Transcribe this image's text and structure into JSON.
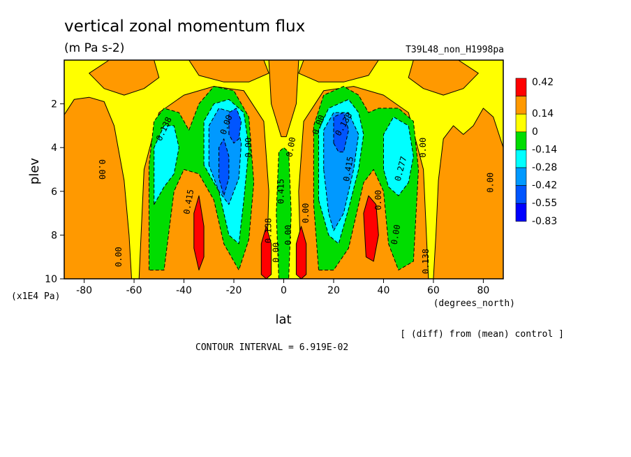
{
  "chart_data": {
    "type": "heatmap",
    "title": "vertical zonal momentum flux",
    "units": "(m Pa s-2)",
    "run_label": "T39L48_non_H1998pa",
    "xlabel": "lat",
    "x_units": "(degrees_north)",
    "ylabel": "plev",
    "y_units": "(x1E4 Pa)",
    "xlim": [
      -88,
      88
    ],
    "ylim": [
      10,
      0
    ],
    "x_ticks": [
      "-80",
      "-60",
      "-40",
      "-20",
      "0",
      "20",
      "40",
      "60",
      "80"
    ],
    "y_ticks": [
      "2",
      "4",
      "6",
      "8",
      "10"
    ],
    "contour_interval_label": "CONTOUR INTERVAL = 6.919E-02",
    "diff_note": "[ (diff) from (mean) control ]",
    "legend": [
      {
        "label": "0.42",
        "color": "#ff0000"
      },
      {
        "label": "0.14",
        "color": "#ff9900"
      },
      {
        "label": "0",
        "color": "#ffff00"
      },
      {
        "label": "-0.14",
        "color": "#00dd00"
      },
      {
        "label": "-0.28",
        "color": "#00ffff"
      },
      {
        "label": "-0.42",
        "color": "#0099ff"
      },
      {
        "label": "-0.55",
        "color": "#0055ff"
      },
      {
        "label": "-0.83",
        "color": "#0000ff"
      }
    ],
    "contour_labels": [
      "0.138",
      "0.00",
      "0.00",
      "0.415",
      "0.00",
      "0.00",
      "0.138",
      "0.00",
      "0.415",
      "0.00",
      "0.00",
      "0.138",
      "0.415",
      "0.00",
      "0.00",
      "0.277",
      "0.00",
      "0.00",
      "0.138",
      "0.00",
      "0.00"
    ],
    "regions": [
      {
        "kind": "orange",
        "path": [
          [
            -88,
            10
          ],
          [
            -88,
            2.5
          ],
          [
            -84,
            1.8
          ],
          [
            -78,
            1.7
          ],
          [
            -72,
            1.9
          ],
          [
            -68,
            3.0
          ],
          [
            -64,
            5.5
          ],
          [
            -62,
            8.0
          ],
          [
            -61,
            10
          ]
        ]
      },
      {
        "kind": "orange",
        "path": [
          [
            -70,
            0
          ],
          [
            -52,
            0
          ],
          [
            -50,
            0.8
          ],
          [
            -56,
            1.3
          ],
          [
            -64,
            1.6
          ],
          [
            -72,
            1.3
          ],
          [
            -78,
            0.6
          ]
        ]
      },
      {
        "kind": "orange",
        "path": [
          [
            -38,
            0
          ],
          [
            -8,
            0
          ],
          [
            -6,
            0.6
          ],
          [
            -14,
            1.0
          ],
          [
            -24,
            1.0
          ],
          [
            -34,
            0.7
          ]
        ]
      },
      {
        "kind": "orange",
        "path": [
          [
            -6,
            0
          ],
          [
            6,
            0
          ],
          [
            5,
            2.0
          ],
          [
            1,
            3.5
          ],
          [
            -1,
            3.5
          ],
          [
            -5,
            2.0
          ]
        ]
      },
      {
        "kind": "orange",
        "path": [
          [
            8,
            0
          ],
          [
            38,
            0
          ],
          [
            34,
            0.7
          ],
          [
            24,
            1.0
          ],
          [
            14,
            1.0
          ],
          [
            6,
            0.6
          ]
        ]
      },
      {
        "kind": "orange",
        "path": [
          [
            52,
            0
          ],
          [
            70,
            0
          ],
          [
            78,
            0.6
          ],
          [
            72,
            1.3
          ],
          [
            64,
            1.6
          ],
          [
            56,
            1.3
          ],
          [
            50,
            0.8
          ]
        ]
      },
      {
        "kind": "orange",
        "path": [
          [
            88,
            4.0
          ],
          [
            88,
            10
          ],
          [
            60,
            10
          ],
          [
            61,
            8.0
          ],
          [
            62,
            5.5
          ],
          [
            64,
            3.6
          ],
          [
            68,
            3.0
          ],
          [
            72,
            3.4
          ],
          [
            76,
            3.0
          ],
          [
            80,
            2.2
          ],
          [
            84,
            2.6
          ]
        ]
      },
      {
        "kind": "orange",
        "path": [
          [
            -58,
            10
          ],
          [
            -56,
            5.0
          ],
          [
            -50,
            2.4
          ],
          [
            -40,
            1.6
          ],
          [
            -28,
            1.2
          ],
          [
            -16,
            1.4
          ],
          [
            -8,
            2.8
          ],
          [
            -6,
            6.0
          ],
          [
            -7,
            10
          ]
        ]
      },
      {
        "kind": "orange",
        "path": [
          [
            7,
            10
          ],
          [
            6,
            6.0
          ],
          [
            8,
            2.8
          ],
          [
            16,
            1.4
          ],
          [
            28,
            1.2
          ],
          [
            40,
            1.6
          ],
          [
            50,
            2.4
          ],
          [
            56,
            5.0
          ],
          [
            58,
            10
          ]
        ]
      },
      {
        "kind": "green",
        "path": [
          [
            -54,
            9.6
          ],
          [
            -54,
            4.8
          ],
          [
            -52,
            2.8
          ],
          [
            -48,
            2.2
          ],
          [
            -42,
            2.4
          ],
          [
            -38,
            3.2
          ],
          [
            -34,
            2.0
          ],
          [
            -28,
            1.2
          ],
          [
            -20,
            1.4
          ],
          [
            -14,
            2.6
          ],
          [
            -12,
            5.6
          ],
          [
            -14,
            8.2
          ],
          [
            -18,
            9.6
          ],
          [
            -24,
            8.4
          ],
          [
            -28,
            6.4
          ],
          [
            -34,
            5.2
          ],
          [
            -40,
            5.0
          ],
          [
            -44,
            6.0
          ],
          [
            -48,
            9.6
          ]
        ]
      },
      {
        "kind": "green",
        "path": [
          [
            14,
            9.6
          ],
          [
            12,
            6.6
          ],
          [
            12,
            3.0
          ],
          [
            16,
            1.6
          ],
          [
            24,
            1.2
          ],
          [
            30,
            1.6
          ],
          [
            34,
            2.4
          ],
          [
            38,
            2.2
          ],
          [
            46,
            2.2
          ],
          [
            52,
            2.8
          ],
          [
            54,
            5.0
          ],
          [
            52,
            9.2
          ],
          [
            46,
            9.6
          ],
          [
            42,
            8.4
          ],
          [
            40,
            6.0
          ],
          [
            36,
            5.0
          ],
          [
            32,
            5.6
          ],
          [
            26,
            8.6
          ],
          [
            20,
            9.6
          ]
        ]
      },
      {
        "kind": "green",
        "path": [
          [
            -2,
            10
          ],
          [
            -3,
            7.0
          ],
          [
            -2,
            4.2
          ],
          [
            0,
            4.0
          ],
          [
            2,
            4.2
          ],
          [
            3,
            7.0
          ],
          [
            2,
            10
          ]
        ]
      },
      {
        "kind": "cyan",
        "path": [
          [
            -52,
            6.6
          ],
          [
            -52,
            4.0
          ],
          [
            -48,
            3.0
          ],
          [
            -44,
            3.0
          ],
          [
            -42,
            4.0
          ],
          [
            -44,
            5.2
          ],
          [
            -48,
            5.8
          ]
        ]
      },
      {
        "kind": "cyan",
        "path": [
          [
            40,
            5.0
          ],
          [
            40,
            3.4
          ],
          [
            44,
            2.6
          ],
          [
            50,
            3.0
          ],
          [
            52,
            4.4
          ],
          [
            50,
            5.6
          ],
          [
            46,
            6.2
          ],
          [
            42,
            5.8
          ]
        ]
      },
      {
        "kind": "cyan",
        "path": [
          [
            -32,
            4.8
          ],
          [
            -32,
            2.8
          ],
          [
            -28,
            2.0
          ],
          [
            -22,
            1.8
          ],
          [
            -16,
            2.4
          ],
          [
            -14,
            4.0
          ],
          [
            -16,
            6.4
          ],
          [
            -18,
            8.4
          ],
          [
            -22,
            8.0
          ],
          [
            -26,
            6.0
          ]
        ]
      },
      {
        "kind": "cyan",
        "path": [
          [
            14,
            6.4
          ],
          [
            14,
            3.2
          ],
          [
            18,
            2.2
          ],
          [
            26,
            1.8
          ],
          [
            30,
            2.4
          ],
          [
            32,
            3.4
          ],
          [
            30,
            5.0
          ],
          [
            26,
            6.8
          ],
          [
            22,
            8.4
          ],
          [
            18,
            8.0
          ]
        ]
      },
      {
        "kind": "blue",
        "path": [
          [
            -30,
            4.8
          ],
          [
            -30,
            3.0
          ],
          [
            -26,
            2.2
          ],
          [
            -20,
            2.4
          ],
          [
            -17,
            3.8
          ],
          [
            -18,
            5.4
          ],
          [
            -22,
            6.6
          ],
          [
            -26,
            6.0
          ]
        ]
      },
      {
        "kind": "blue",
        "path": [
          [
            16,
            5.0
          ],
          [
            16,
            3.2
          ],
          [
            20,
            2.4
          ],
          [
            26,
            2.4
          ],
          [
            30,
            3.4
          ],
          [
            28,
            5.0
          ],
          [
            24,
            7.0
          ],
          [
            20,
            7.8
          ],
          [
            18,
            7.0
          ]
        ]
      },
      {
        "kind": "dblue",
        "path": [
          [
            -26,
            5.4
          ],
          [
            -26,
            4.0
          ],
          [
            -24,
            3.6
          ],
          [
            -22,
            4.4
          ],
          [
            -22,
            5.4
          ],
          [
            -24,
            6.2
          ]
        ]
      },
      {
        "kind": "dblue",
        "path": [
          [
            -22,
            3.4
          ],
          [
            -22,
            2.4
          ],
          [
            -19,
            2.2
          ],
          [
            -17,
            2.8
          ],
          [
            -18,
            3.6
          ],
          [
            -20,
            3.8
          ]
        ]
      },
      {
        "kind": "dblue",
        "path": [
          [
            20,
            3.8
          ],
          [
            20,
            2.6
          ],
          [
            24,
            2.4
          ],
          [
            26,
            3.2
          ],
          [
            24,
            4.2
          ],
          [
            22,
            4.2
          ]
        ]
      },
      {
        "kind": "red",
        "path": [
          [
            -36,
            7.0
          ],
          [
            -34,
            6.2
          ],
          [
            -32,
            7.6
          ],
          [
            -32,
            9.0
          ],
          [
            -34,
            9.6
          ],
          [
            -36,
            8.6
          ]
        ]
      },
      {
        "kind": "red",
        "path": [
          [
            -9,
            8.4
          ],
          [
            -7,
            7.6
          ],
          [
            -5,
            8.4
          ],
          [
            -5,
            9.8
          ],
          [
            -7,
            10
          ],
          [
            -9,
            9.8
          ]
        ]
      },
      {
        "kind": "red",
        "path": [
          [
            5,
            8.4
          ],
          [
            7,
            7.6
          ],
          [
            9,
            8.4
          ],
          [
            9,
            9.8
          ],
          [
            7,
            10
          ],
          [
            5,
            9.8
          ]
        ]
      },
      {
        "kind": "red",
        "path": [
          [
            32,
            7.0
          ],
          [
            34,
            6.2
          ],
          [
            37,
            6.6
          ],
          [
            38,
            8.0
          ],
          [
            36,
            9.2
          ],
          [
            33,
            9.0
          ]
        ]
      }
    ]
  }
}
